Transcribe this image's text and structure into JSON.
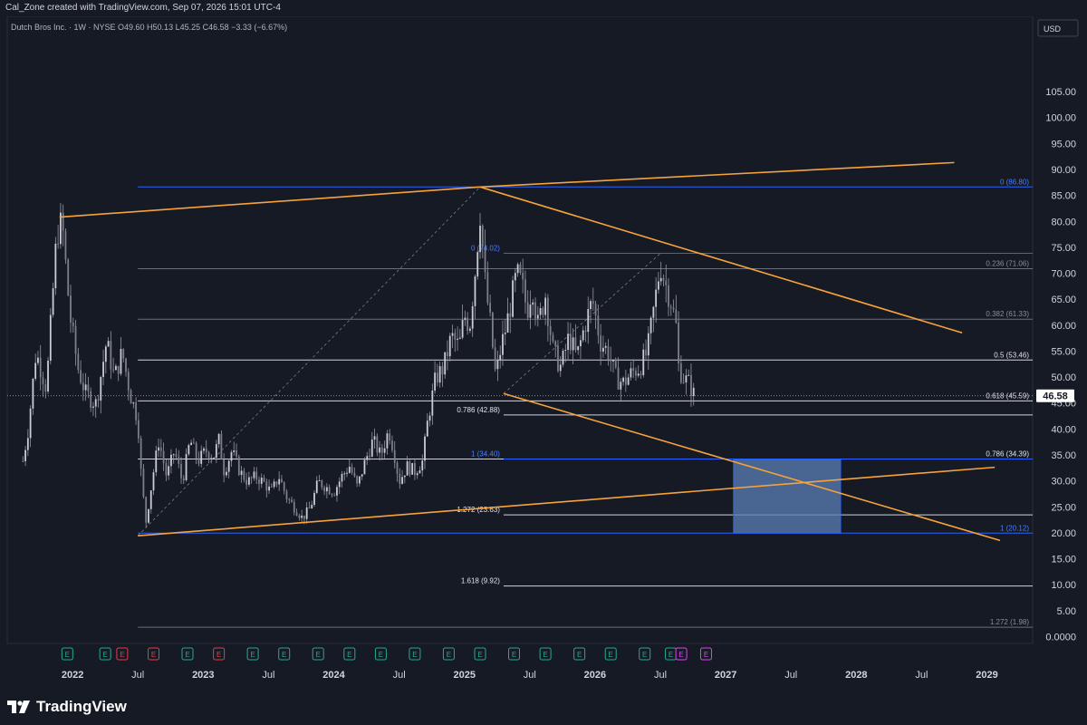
{
  "header": {
    "credit": "Cal_Zone created with TradingView.com, Sep 07, 2026 15:01 UTC-4",
    "symbol_line": "Dutch Bros Inc. · 1W · NYSE  O49.60  H50.13  L45.25  C46.58  −3.33 (−6.67%)"
  },
  "currency": "USD",
  "brand": {
    "name": "TradingView"
  },
  "colors": {
    "background": "#161a25",
    "candle": "#9598a1",
    "trendline": "#f7a33c",
    "fib_blue": "#2962ff",
    "fib_white": "#d1d4dc",
    "zone": "#5b7fb5",
    "price_tag": "#ffffff"
  },
  "chart_data": {
    "type": "candlestick",
    "symbol": "Dutch Bros Inc.",
    "exchange": "NYSE",
    "interval": "1W",
    "ylim": [
      0,
      105
    ],
    "y_ticks": [
      "105.00",
      "100.00",
      "95.00",
      "90.00",
      "85.00",
      "80.00",
      "75.00",
      "70.00",
      "65.00",
      "60.00",
      "55.00",
      "50.00",
      "45.00",
      "40.00",
      "35.00",
      "30.00",
      "25.00",
      "20.00",
      "15.00",
      "10.00",
      "5.00",
      "0.0000"
    ],
    "x_ticks": [
      {
        "label": "2022",
        "t": 2022.0,
        "bold": true
      },
      {
        "label": "Jul",
        "t": 2022.5,
        "bold": false
      },
      {
        "label": "2023",
        "t": 2023.0,
        "bold": true
      },
      {
        "label": "Jul",
        "t": 2023.5,
        "bold": false
      },
      {
        "label": "2024",
        "t": 2024.0,
        "bold": true
      },
      {
        "label": "Jul",
        "t": 2024.5,
        "bold": false
      },
      {
        "label": "2025",
        "t": 2025.0,
        "bold": true
      },
      {
        "label": "Jul",
        "t": 2025.5,
        "bold": false
      },
      {
        "label": "2026",
        "t": 2026.0,
        "bold": true
      },
      {
        "label": "Jul",
        "t": 2026.5,
        "bold": false
      },
      {
        "label": "2027",
        "t": 2027.0,
        "bold": true
      },
      {
        "label": "Jul",
        "t": 2027.5,
        "bold": false
      },
      {
        "label": "2028",
        "t": 2028.0,
        "bold": true
      },
      {
        "label": "Jul",
        "t": 2028.5,
        "bold": false
      },
      {
        "label": "2029",
        "t": 2029.0,
        "bold": true
      }
    ],
    "last_price": 46.58,
    "last_price_label": "46.58",
    "price_path": [
      [
        2021.62,
        34
      ],
      [
        2021.66,
        40
      ],
      [
        2021.72,
        55
      ],
      [
        2021.8,
        48
      ],
      [
        2021.88,
        78
      ],
      [
        2021.92,
        80
      ],
      [
        2021.98,
        62
      ],
      [
        2022.04,
        52
      ],
      [
        2022.1,
        47
      ],
      [
        2022.18,
        45
      ],
      [
        2022.26,
        57
      ],
      [
        2022.32,
        50
      ],
      [
        2022.38,
        55
      ],
      [
        2022.44,
        47
      ],
      [
        2022.5,
        42
      ],
      [
        2022.52,
        33
      ],
      [
        2022.56,
        22
      ],
      [
        2022.62,
        32
      ],
      [
        2022.66,
        38
      ],
      [
        2022.72,
        31
      ],
      [
        2022.78,
        36
      ],
      [
        2022.84,
        30
      ],
      [
        2022.9,
        38
      ],
      [
        2022.96,
        34
      ],
      [
        2023.02,
        36
      ],
      [
        2023.08,
        35
      ],
      [
        2023.12,
        38
      ],
      [
        2023.16,
        32
      ],
      [
        2023.22,
        36
      ],
      [
        2023.28,
        32
      ],
      [
        2023.34,
        30
      ],
      [
        2023.4,
        31
      ],
      [
        2023.46,
        30
      ],
      [
        2023.52,
        28
      ],
      [
        2023.58,
        31
      ],
      [
        2023.64,
        27
      ],
      [
        2023.7,
        25
      ],
      [
        2023.76,
        23
      ],
      [
        2023.82,
        25
      ],
      [
        2023.88,
        30
      ],
      [
        2023.94,
        29
      ],
      [
        2024.0,
        28
      ],
      [
        2024.06,
        31
      ],
      [
        2024.12,
        33
      ],
      [
        2024.18,
        29
      ],
      [
        2024.24,
        34
      ],
      [
        2024.3,
        38
      ],
      [
        2024.36,
        35
      ],
      [
        2024.42,
        40
      ],
      [
        2024.46,
        36
      ],
      [
        2024.5,
        30
      ],
      [
        2024.56,
        33
      ],
      [
        2024.62,
        32
      ],
      [
        2024.68,
        34
      ],
      [
        2024.72,
        42
      ],
      [
        2024.78,
        50
      ],
      [
        2024.84,
        52
      ],
      [
        2024.9,
        58
      ],
      [
        2024.96,
        56
      ],
      [
        2025.0,
        62
      ],
      [
        2025.04,
        60
      ],
      [
        2025.08,
        70
      ],
      [
        2025.12,
        82
      ],
      [
        2025.16,
        68
      ],
      [
        2025.2,
        60
      ],
      [
        2025.24,
        50
      ],
      [
        2025.28,
        56
      ],
      [
        2025.32,
        60
      ],
      [
        2025.36,
        65
      ],
      [
        2025.4,
        70
      ],
      [
        2025.44,
        68
      ],
      [
        2025.48,
        63
      ],
      [
        2025.52,
        68
      ],
      [
        2025.56,
        60
      ],
      [
        2025.62,
        66
      ],
      [
        2025.68,
        55
      ],
      [
        2025.74,
        52
      ],
      [
        2025.8,
        58
      ],
      [
        2025.86,
        54
      ],
      [
        2025.92,
        60
      ],
      [
        2025.98,
        65
      ],
      [
        2026.04,
        57
      ],
      [
        2026.1,
        55
      ],
      [
        2026.16,
        50
      ],
      [
        2026.22,
        49
      ],
      [
        2026.28,
        51
      ],
      [
        2026.34,
        52
      ],
      [
        2026.4,
        55
      ],
      [
        2026.46,
        65
      ],
      [
        2026.5,
        72
      ],
      [
        2026.54,
        68
      ],
      [
        2026.58,
        65
      ],
      [
        2026.62,
        60
      ],
      [
        2026.64,
        52
      ],
      [
        2026.68,
        50
      ],
      [
        2026.72,
        49
      ],
      [
        2026.76,
        46.58
      ]
    ],
    "fib_levels": [
      {
        "label": "0 (86.80)",
        "value": 86.8,
        "color": "blue",
        "x1": 2022.5,
        "x2": 2029.4,
        "label_pos": "right"
      },
      {
        "label": "0 (74.02)",
        "value": 74.02,
        "color": "blue",
        "x1": 2025.3,
        "x2": 2029.4,
        "label_pos": "left"
      },
      {
        "label": "0.236 (71.06)",
        "value": 71.06,
        "color": "gray",
        "x1": 2022.5,
        "x2": 2029.4,
        "label_pos": "right"
      },
      {
        "label": "0.382 (61.33)",
        "value": 61.33,
        "color": "gray",
        "x1": 2022.5,
        "x2": 2029.4,
        "label_pos": "right"
      },
      {
        "label": "0.5 (53.46)",
        "value": 53.46,
        "color": "white",
        "x1": 2022.5,
        "x2": 2029.4,
        "label_pos": "right"
      },
      {
        "label": "0.618 (45.59)",
        "value": 45.59,
        "color": "white",
        "x1": 2022.5,
        "x2": 2029.4,
        "label_pos": "right"
      },
      {
        "label": "0.786 (42.88)",
        "value": 42.88,
        "color": "white",
        "x1": 2025.3,
        "x2": 2029.4,
        "label_pos": "left"
      },
      {
        "label": "0.786 (34.39)",
        "value": 34.39,
        "color": "white",
        "x1": 2022.5,
        "x2": 2029.4,
        "label_pos": "right"
      },
      {
        "label": "1 (34.40)",
        "value": 34.4,
        "color": "blue",
        "x1": 2025.3,
        "x2": 2029.4,
        "label_pos": "left"
      },
      {
        "label": "1.272 (23.63)",
        "value": 23.63,
        "color": "white",
        "x1": 2025.3,
        "x2": 2029.4,
        "label_pos": "left"
      },
      {
        "label": "1 (20.12)",
        "value": 20.12,
        "color": "blue",
        "x1": 2022.5,
        "x2": 2029.4,
        "label_pos": "right"
      },
      {
        "label": "1.618 (9.92)",
        "value": 9.92,
        "color": "white",
        "x1": 2025.3,
        "x2": 2029.4,
        "label_pos": "left"
      },
      {
        "label": "1.272 (1.98)",
        "value": 1.98,
        "color": "gray",
        "x1": 2022.5,
        "x2": 2029.4,
        "label_pos": "right"
      }
    ],
    "trendlines": [
      {
        "from": [
          2021.9,
          81.0
        ],
        "to": [
          2025.12,
          86.8
        ]
      },
      {
        "from": [
          2025.12,
          86.8
        ],
        "to": [
          2028.75,
          91.5
        ]
      },
      {
        "from": [
          2022.5,
          19.6
        ],
        "to": [
          2029.06,
          32.8
        ]
      },
      {
        "from": [
          2025.12,
          86.8
        ],
        "to": [
          2028.81,
          58.7
        ]
      },
      {
        "from": [
          2025.3,
          47.0
        ],
        "to": [
          2029.1,
          18.7
        ]
      }
    ],
    "dashed_lines": [
      {
        "from": [
          2022.5,
          19.6
        ],
        "to": [
          2025.12,
          86.8
        ]
      },
      {
        "from": [
          2025.3,
          47.0
        ],
        "to": [
          2026.5,
          74.0
        ]
      }
    ],
    "zone": {
      "x1": 2027.06,
      "x2": 2027.88,
      "y1": 20.12,
      "y2": 34.39
    },
    "events": [
      {
        "t": 2021.96,
        "type": "E",
        "color": "green"
      },
      {
        "t": 2022.25,
        "type": "E",
        "color": "green"
      },
      {
        "t": 2022.38,
        "type": "E",
        "color": "red"
      },
      {
        "t": 2022.62,
        "type": "E",
        "color": "red"
      },
      {
        "t": 2022.88,
        "type": "E",
        "color": "green"
      },
      {
        "t": 2023.12,
        "type": "E",
        "color": "red"
      },
      {
        "t": 2023.38,
        "type": "E",
        "color": "green"
      },
      {
        "t": 2023.62,
        "type": "E",
        "color": "green"
      },
      {
        "t": 2023.88,
        "type": "E",
        "color": "green"
      },
      {
        "t": 2024.12,
        "type": "E",
        "color": "green"
      },
      {
        "t": 2024.36,
        "type": "E",
        "color": "green"
      },
      {
        "t": 2024.62,
        "type": "E",
        "color": "green"
      },
      {
        "t": 2024.88,
        "type": "E",
        "color": "green"
      },
      {
        "t": 2025.12,
        "type": "E",
        "color": "green"
      },
      {
        "t": 2025.38,
        "type": "E",
        "color": "green"
      },
      {
        "t": 2025.62,
        "type": "E",
        "color": "green"
      },
      {
        "t": 2025.88,
        "type": "E",
        "color": "green"
      },
      {
        "t": 2026.12,
        "type": "E",
        "color": "green"
      },
      {
        "t": 2026.38,
        "type": "E",
        "color": "green"
      },
      {
        "t": 2026.58,
        "type": "E",
        "color": "green"
      },
      {
        "t": 2026.66,
        "type": "E",
        "color": "magenta-split"
      },
      {
        "t": 2026.85,
        "type": "E",
        "color": "magenta"
      }
    ]
  }
}
